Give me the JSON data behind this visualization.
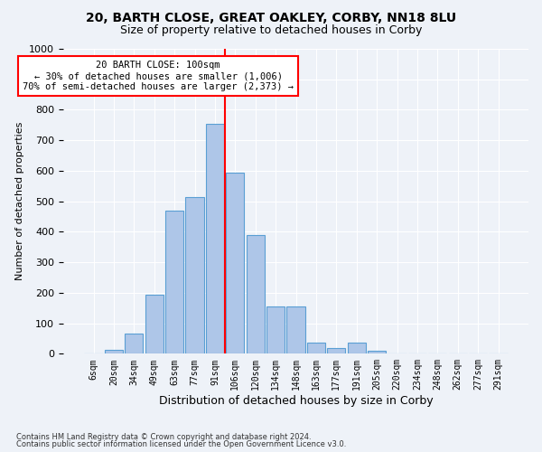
{
  "title1": "20, BARTH CLOSE, GREAT OAKLEY, CORBY, NN18 8LU",
  "title2": "Size of property relative to detached houses in Corby",
  "xlabel": "Distribution of detached houses by size in Corby",
  "ylabel": "Number of detached properties",
  "bar_labels": [
    "6sqm",
    "20sqm",
    "34sqm",
    "49sqm",
    "63sqm",
    "77sqm",
    "91sqm",
    "106sqm",
    "120sqm",
    "134sqm",
    "148sqm",
    "163sqm",
    "177sqm",
    "191sqm",
    "205sqm",
    "220sqm",
    "234sqm",
    "248sqm",
    "262sqm",
    "277sqm",
    "291sqm"
  ],
  "bar_heights": [
    0,
    12,
    65,
    195,
    470,
    515,
    755,
    595,
    390,
    155,
    155,
    37,
    20,
    38,
    10,
    2,
    1,
    1,
    0,
    0,
    0
  ],
  "bar_color": "#aec6e8",
  "bar_edge_color": "#5a9fd4",
  "vline_color": "red",
  "annotation_text": "20 BARTH CLOSE: 100sqm\n← 30% of detached houses are smaller (1,006)\n70% of semi-detached houses are larger (2,373) →",
  "annotation_box_color": "white",
  "annotation_box_edge": "red",
  "ylim": [
    0,
    1000
  ],
  "yticks": [
    0,
    100,
    200,
    300,
    400,
    500,
    600,
    700,
    800,
    900,
    1000
  ],
  "footer1": "Contains HM Land Registry data © Crown copyright and database right 2024.",
  "footer2": "Contains public sector information licensed under the Open Government Licence v3.0.",
  "bg_color": "#eef2f8",
  "plot_bg_color": "#eef2f8"
}
